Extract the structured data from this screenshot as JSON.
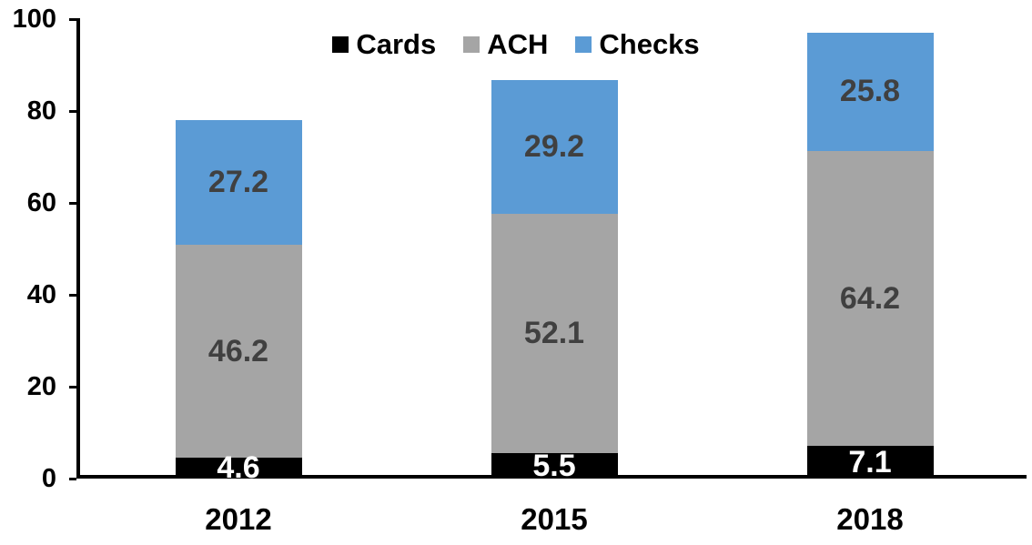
{
  "chart_data": {
    "type": "bar",
    "stacked": true,
    "title": "",
    "categories": [
      "2012",
      "2015",
      "2018"
    ],
    "series": [
      {
        "name": "Cards",
        "color": "#000000",
        "label_color": "#ffffff",
        "values": [
          4.6,
          5.5,
          7.1
        ]
      },
      {
        "name": "ACH",
        "color": "#a5a5a5",
        "label_color": "#404040",
        "values": [
          46.2,
          52.1,
          64.2
        ]
      },
      {
        "name": "Checks",
        "color": "#5b9bd5",
        "label_color": "#404040",
        "values": [
          27.2,
          29.2,
          25.8
        ]
      }
    ],
    "y_ticks": [
      0,
      20,
      40,
      60,
      80,
      100
    ],
    "ylim": [
      0,
      100
    ],
    "xlabel": "",
    "ylabel": "",
    "grid": false,
    "legend_position": "top-center",
    "axis_color": "#000000",
    "tick_label_color": "#000000",
    "category_label_color": "#000000"
  }
}
